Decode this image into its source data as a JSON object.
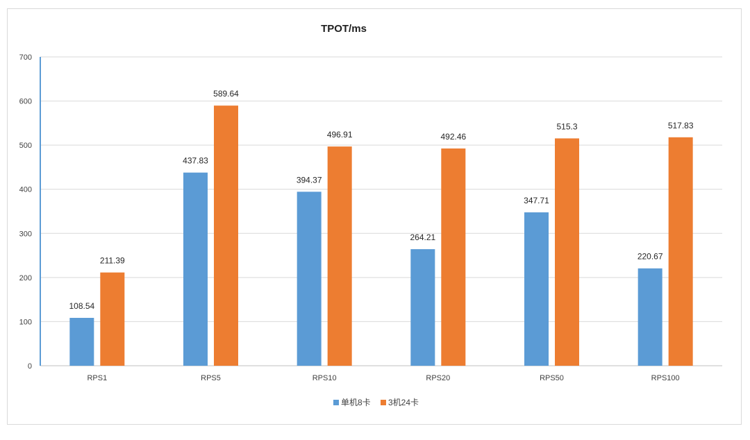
{
  "chart_data": {
    "type": "bar",
    "title": "TPOT/ms",
    "xlabel": "",
    "ylabel": "",
    "categories": [
      "RPS1",
      "RPS5",
      "RPS10",
      "RPS20",
      "RPS50",
      "RPS100"
    ],
    "series": [
      {
        "name": "单机8卡",
        "color": "#5B9BD5",
        "values": [
          108.54,
          437.83,
          394.37,
          264.21,
          347.71,
          220.67
        ]
      },
      {
        "name": "3机24卡",
        "color": "#ED7D31",
        "values": [
          211.39,
          589.64,
          496.91,
          492.46,
          515.3,
          517.83
        ]
      }
    ],
    "ylim": [
      0,
      700
    ],
    "yticks": [
      0,
      100,
      200,
      300,
      400,
      500,
      600,
      700
    ],
    "grid": true,
    "legend": "bottom"
  }
}
